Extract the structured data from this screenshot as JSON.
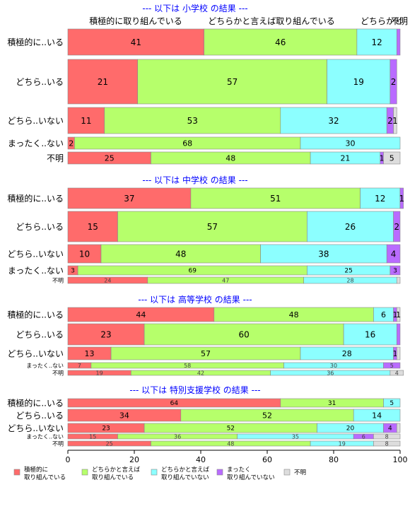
{
  "chart_data": {
    "type": "bar",
    "orientation": "horizontal",
    "stacked": true,
    "xlim": [
      0,
      100
    ],
    "xticks": [
      "0",
      "20",
      "40",
      "60",
      "80",
      "100"
    ],
    "top_labels": [
      "積極的に取り組んでいる",
      "どちらかと言えば取り組んでいる",
      "どちらかと",
      "不明"
    ],
    "colors": [
      "#ff6b6b",
      "#b6ff6b",
      "#8cffff",
      "#b96bff",
      "#dddddd"
    ],
    "legend": {
      "placement": "bottom",
      "entries": [
        {
          "label": "積極的に\n取り組んでいる",
          "color": "#ff6b6b"
        },
        {
          "label": "どちらかと言えば\n取り組んでいる",
          "color": "#b6ff6b"
        },
        {
          "label": "どちらかと言えば\n取り組んでいない",
          "color": "#8cffff"
        },
        {
          "label": "まったく\n取り組んでいない",
          "color": "#b96bff"
        },
        {
          "label": "不明",
          "color": "#dddddd"
        }
      ]
    },
    "panels": [
      {
        "title": "--- 以下は 小学校 の結果 ---",
        "rows": [
          {
            "label": "積極的に..いる",
            "values": [
              41,
              46,
              12,
              1,
              0
            ],
            "labels": [
              "41",
              "46",
              "12",
              "",
              ""
            ]
          },
          {
            "label": "どちら..いる",
            "values": [
              21,
              57,
              19,
              2,
              0
            ],
            "labels": [
              "21",
              "57",
              "19",
              "2",
              ""
            ]
          },
          {
            "label": "どちら..いない",
            "values": [
              11,
              53,
              32,
              2,
              1
            ],
            "labels": [
              "11",
              "53",
              "32",
              "2",
              "1"
            ]
          },
          {
            "label": "まったく..ない",
            "values": [
              2,
              68,
              30,
              0,
              0
            ],
            "labels": [
              "2",
              "68",
              "30",
              "",
              ""
            ]
          },
          {
            "label": "不明",
            "values": [
              25,
              48,
              21,
              1,
              5
            ],
            "labels": [
              "25",
              "48",
              "21",
              "1",
              "5"
            ]
          }
        ]
      },
      {
        "title": "--- 以下は 中学校 の結果 ---",
        "rows": [
          {
            "label": "積極的に..いる",
            "values": [
              37,
              51,
              12,
              1,
              0
            ],
            "labels": [
              "37",
              "51",
              "12",
              "1",
              ""
            ]
          },
          {
            "label": "どちら..いる",
            "values": [
              15,
              57,
              26,
              2,
              0
            ],
            "labels": [
              "15",
              "57",
              "26",
              "2",
              ""
            ]
          },
          {
            "label": "どちら..いない",
            "values": [
              10,
              48,
              38,
              4,
              0
            ],
            "labels": [
              "10",
              "48",
              "38",
              "4",
              ""
            ]
          },
          {
            "label": "まったく..ない",
            "values": [
              3,
              69,
              25,
              3,
              0
            ],
            "labels": [
              "3",
              "69",
              "25",
              "3",
              ""
            ]
          },
          {
            "label": "不明",
            "values": [
              24,
              47,
              28,
              0,
              1
            ],
            "labels": [
              "24",
              "47",
              "28",
              "",
              ""
            ]
          }
        ]
      },
      {
        "title": "--- 以下は 高等学校 の結果 ---",
        "rows": [
          {
            "label": "積極的に..いる",
            "values": [
              44,
              48,
              6,
              1,
              1
            ],
            "labels": [
              "44",
              "48",
              "6",
              "1",
              "1"
            ]
          },
          {
            "label": "どちら..いる",
            "values": [
              23,
              60,
              16,
              1,
              0
            ],
            "labels": [
              "23",
              "60",
              "16",
              "",
              ""
            ]
          },
          {
            "label": "どちら..いない",
            "values": [
              13,
              57,
              28,
              1,
              1
            ],
            "labels": [
              "13",
              "57",
              "28",
              "1",
              ""
            ]
          },
          {
            "label": "まったく..ない",
            "values": [
              7,
              58,
              30,
              5,
              0
            ],
            "labels": [
              "7",
              "58",
              "30",
              "5",
              ""
            ]
          },
          {
            "label": "不明",
            "values": [
              19,
              42,
              36,
              0,
              4
            ],
            "labels": [
              "19",
              "42",
              "36",
              "",
              "4"
            ]
          }
        ]
      },
      {
        "title": "--- 以下は 特別支援学校 の結果 ---",
        "rows": [
          {
            "label": "積極的に..いる",
            "values": [
              64,
              31,
              5,
              0,
              0
            ],
            "labels": [
              "64",
              "31",
              "5",
              "",
              ""
            ]
          },
          {
            "label": "どちら..いる",
            "values": [
              34,
              52,
              14,
              0,
              0
            ],
            "labels": [
              "34",
              "52",
              "14",
              "",
              ""
            ]
          },
          {
            "label": "どちら..いない",
            "values": [
              23,
              52,
              20,
              4,
              1
            ],
            "labels": [
              "23",
              "52",
              "20",
              "4",
              ""
            ]
          },
          {
            "label": "まったく..ない",
            "values": [
              15,
              36,
              35,
              6,
              8
            ],
            "labels": [
              "15",
              "36",
              "35",
              "6",
              "8"
            ]
          },
          {
            "label": "不明",
            "values": [
              25,
              48,
              19,
              0,
              8
            ],
            "labels": [
              "25",
              "48",
              "19",
              "",
              "8"
            ]
          }
        ]
      }
    ]
  }
}
